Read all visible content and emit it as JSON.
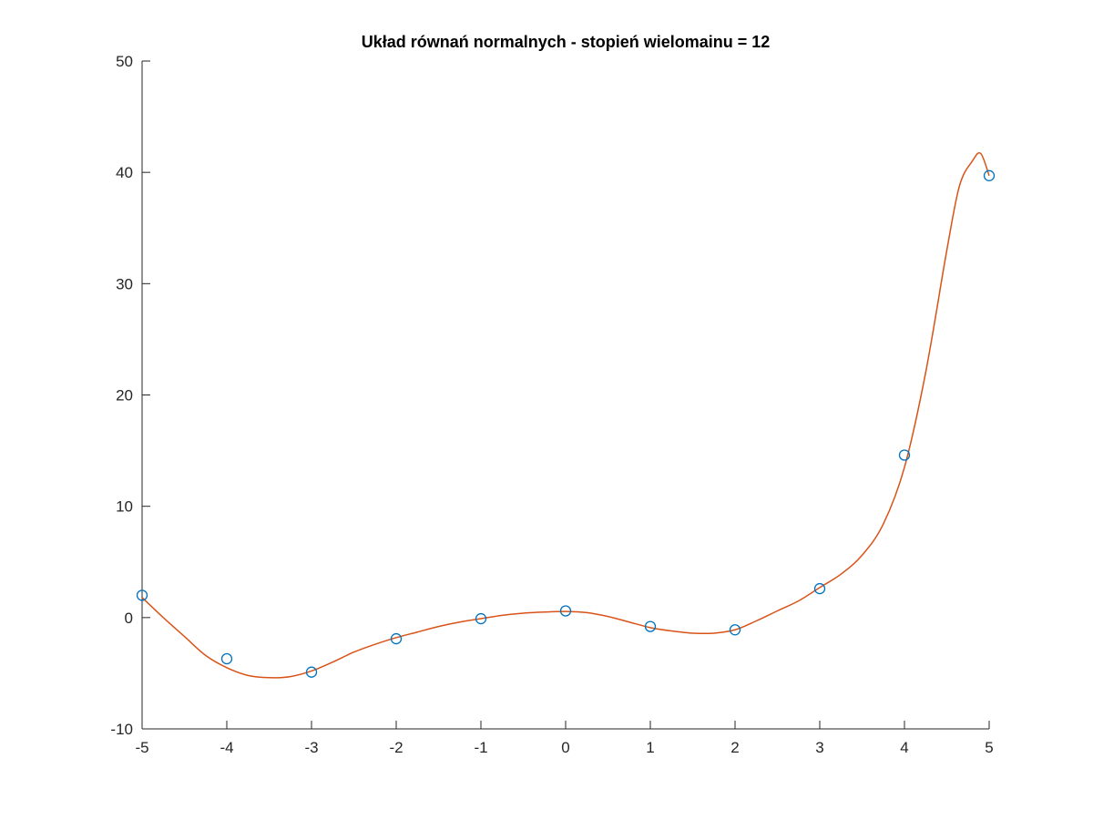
{
  "chart_data": {
    "type": "line",
    "title": "Układ równań normalnych - stopień wielomainu = 12",
    "xlabel": "",
    "ylabel": "",
    "xlim": [
      -5,
      5
    ],
    "ylim": [
      -10,
      50
    ],
    "x_ticks": [
      "-5",
      "-4",
      "-3",
      "-2",
      "-1",
      "0",
      "1",
      "2",
      "3",
      "4",
      "5"
    ],
    "y_ticks": [
      "-10",
      "0",
      "10",
      "20",
      "30",
      "40",
      "50"
    ],
    "grid": false,
    "legend": "none",
    "series": [
      {
        "style": "markers",
        "marker": "circle",
        "color": "#0072BD",
        "x": [
          -5,
          -4,
          -3,
          -2,
          -1,
          0,
          1,
          2,
          3,
          4,
          5
        ],
        "y": [
          2.0,
          -3.7,
          -4.9,
          -1.9,
          -0.1,
          0.6,
          -0.8,
          -1.1,
          2.6,
          14.6,
          39.7
        ]
      },
      {
        "style": "line",
        "color": "#D95319",
        "x": [
          -5.0,
          -4.75,
          -4.5,
          -4.25,
          -4.0,
          -3.75,
          -3.5,
          -3.25,
          -3.0,
          -2.75,
          -2.5,
          -2.25,
          -2.0,
          -1.75,
          -1.5,
          -1.25,
          -1.0,
          -0.75,
          -0.5,
          -0.25,
          0.0,
          0.25,
          0.5,
          0.75,
          1.0,
          1.25,
          1.5,
          1.75,
          2.0,
          2.25,
          2.5,
          2.75,
          3.0,
          3.25,
          3.5,
          3.75,
          4.0,
          4.25,
          4.5,
          4.65,
          4.8,
          4.9,
          5.0
        ],
        "y": [
          1.8,
          0.0,
          -1.7,
          -3.4,
          -4.5,
          -5.2,
          -5.4,
          -5.3,
          -4.8,
          -4.0,
          -3.1,
          -2.4,
          -1.8,
          -1.3,
          -0.8,
          -0.4,
          -0.1,
          0.2,
          0.4,
          0.5,
          0.55,
          0.45,
          0.1,
          -0.4,
          -0.9,
          -1.2,
          -1.4,
          -1.4,
          -1.1,
          -0.3,
          0.6,
          1.5,
          2.7,
          3.9,
          5.6,
          8.4,
          13.5,
          22.0,
          33.0,
          38.8,
          41.0,
          41.7,
          39.7
        ]
      }
    ]
  }
}
